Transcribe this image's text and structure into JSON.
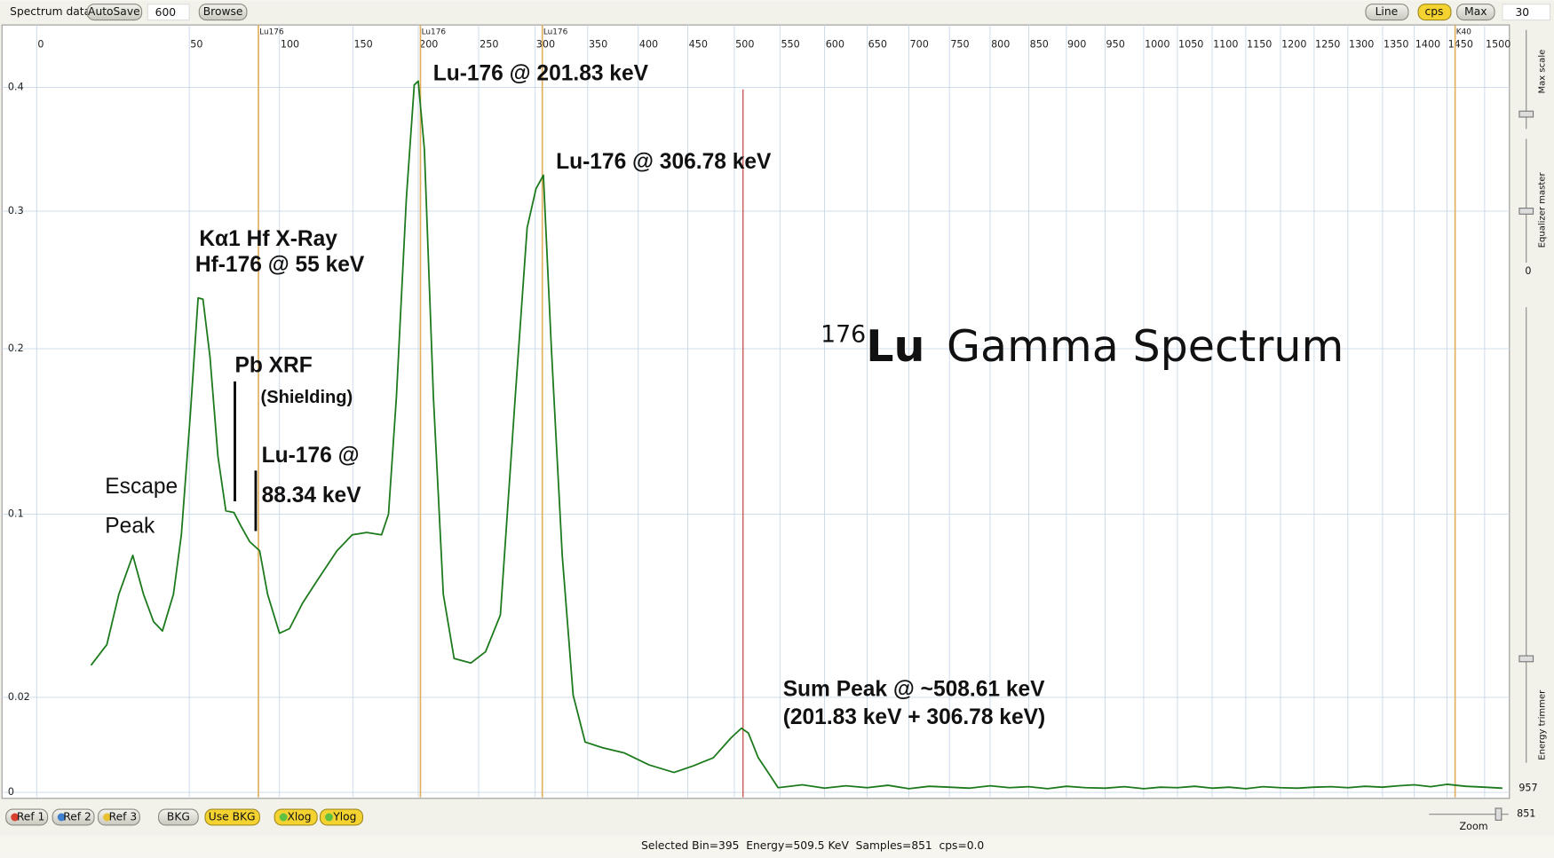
{
  "toolbar": {
    "label": "Spectrum data",
    "autosave": "AutoSave",
    "samples_input": "600",
    "browse": "Browse",
    "line": "Line",
    "cps": "cps",
    "max": "Max",
    "max_input": "30"
  },
  "side_panel": {
    "max_scale": "Max scale",
    "equalizer": "Equalizer master",
    "equalizer_value": "0",
    "energy_trimmer": "Energy trimmer",
    "trimmer_value": "957",
    "zoom_value": "851",
    "zoom": "Zoom"
  },
  "bottom_bar": {
    "buttons": [
      "Ref 1",
      "Ref 2",
      "Ref 3",
      "BKG",
      "Use BKG",
      "Xlog",
      "Ylog"
    ],
    "status": "Selected Bin=395  Energy=509.5 KeV  Samples=851  cps=0.0"
  },
  "chart_data": {
    "type": "line",
    "title_mass": "176",
    "title_element": "Lu",
    "title_text": "Gamma Spectrum",
    "color": "#1c7a1c",
    "x": [
      17.8,
      23,
      26.9,
      31.5,
      35,
      38.3,
      41.2,
      44.8,
      47.4,
      50.5,
      54.9,
      57.6,
      61.5,
      65.9,
      70.3,
      74.7,
      78.5,
      83.5,
      89,
      93.4,
      100,
      106.8,
      115.6,
      125.7,
      139.2,
      149.6,
      160.6,
      172,
      177.3,
      183.3,
      190.9,
      197,
      200,
      205.1,
      212.5,
      220.7,
      229.7,
      243.6,
      256.1,
      269.2,
      282.4,
      292.9,
      300.8,
      307.8,
      315.4,
      325.8,
      336.1,
      347.5,
      364.8,
      386.4,
      410.9,
      436,
      456.1,
      477.3,
      496.5,
      507.7,
      515.3,
      526.2,
      537,
      547.9,
      575,
      600,
      625,
      650,
      675,
      700,
      725,
      750,
      775,
      800,
      825,
      850,
      875,
      900,
      925,
      950,
      975,
      1000,
      1025,
      1050,
      1075,
      1100,
      1125,
      1150,
      1175,
      1200,
      1225,
      1250,
      1275,
      1300,
      1325,
      1350,
      1375,
      1400,
      1425,
      1450,
      1475,
      1500,
      1525
    ],
    "values": [
      0.034,
      0.043,
      0.065,
      0.082,
      0.065,
      0.053,
      0.049,
      0.065,
      0.091,
      0.159,
      0.237,
      0.236,
      0.195,
      0.135,
      0.102,
      0.101,
      0.095,
      0.088,
      0.084,
      0.065,
      0.048,
      0.05,
      0.061,
      0.071,
      0.084,
      0.091,
      0.092,
      0.091,
      0.1,
      0.171,
      0.31,
      0.402,
      0.405,
      0.35,
      0.171,
      0.065,
      0.037,
      0.035,
      0.04,
      0.056,
      0.171,
      0.288,
      0.318,
      0.329,
      0.201,
      0.082,
      0.021,
      0.0106,
      0.0094,
      0.0083,
      0.0058,
      0.0042,
      0.0056,
      0.0073,
      0.0115,
      0.0135,
      0.0125,
      0.0073,
      0.0042,
      0.001,
      0.0016,
      0.0009,
      0.0014,
      0.001,
      0.0015,
      0.0008,
      0.0013,
      0.0011,
      0.0009,
      0.0014,
      0.001,
      0.0012,
      0.0008,
      0.0013,
      0.001,
      0.0009,
      0.0012,
      0.0008,
      0.0011,
      0.001,
      0.0013,
      0.0009,
      0.0011,
      0.0008,
      0.0012,
      0.001,
      0.0009,
      0.0011,
      0.0012,
      0.001,
      0.0013,
      0.0011,
      0.0014,
      0.0016,
      0.0012,
      0.0017,
      0.0013,
      0.0011,
      0.0009
    ],
    "xlim": [
      -12,
      1535
    ],
    "xticks": [
      0,
      50,
      100,
      150,
      200,
      250,
      300,
      350,
      400,
      450,
      500,
      550,
      600,
      650,
      700,
      750,
      800,
      850,
      900,
      950,
      1000,
      1050,
      1100,
      1150,
      1200,
      1250,
      1300,
      1350,
      1400,
      1450,
      1500
    ],
    "ylim": [
      -0.001,
      0.45
    ],
    "yticks": [
      0,
      0.02,
      0.1,
      0.2,
      0.3,
      0.4
    ],
    "grid": true,
    "markers": [
      {
        "label": "Lu176",
        "value": 88.34
      },
      {
        "label": "Lu176",
        "value": 201.83
      },
      {
        "label": "Lu176",
        "value": 306.78
      },
      {
        "label": "K40",
        "value": 1460.8
      }
    ],
    "marker_color": "#e0b060",
    "cursor": 509.5,
    "cursor_color": "#c03030",
    "annotations": [
      "Kα1 Hf X-Ray",
      "Hf-176 @ 55 keV",
      "Pb XRF",
      "(Shielding)",
      "Lu-176 @",
      "88.34 keV",
      "Escape",
      "Peak",
      "Lu-176 @ 201.83 keV",
      "Lu-176 @ 306.78 keV",
      "Sum Peak @ ~508.61 keV",
      "(201.83 keV + 306.78 keV)"
    ]
  }
}
